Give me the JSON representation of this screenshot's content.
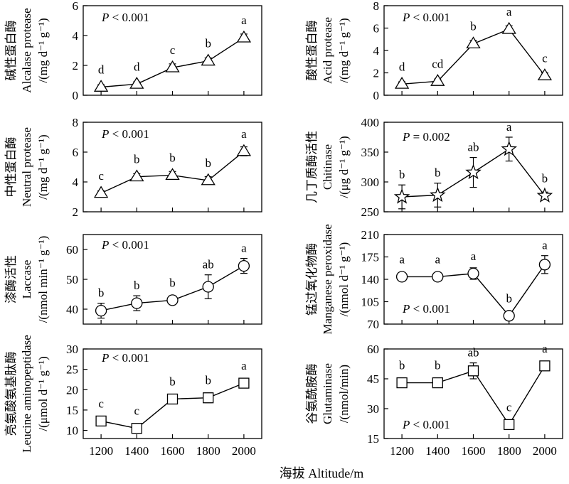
{
  "figure": {
    "xlabel": "海拔 Altitude/m"
  },
  "chart_data": [
    {
      "type": "line",
      "xlabel_cn": "碱性蛋白酶",
      "xlabel_en": "Alcalase protease",
      "ylabel_unit": "/(mg d⁻¹ g⁻¹)",
      "pvalue": "P < 0.001",
      "marker": "triangle",
      "x": [
        1200,
        1400,
        1600,
        1800,
        2000
      ],
      "y": [
        0.55,
        0.75,
        1.85,
        2.3,
        3.85
      ],
      "err": [
        0.15,
        0.15,
        0.25,
        0.2,
        0.25
      ],
      "letters": [
        "d",
        "d",
        "c",
        "b",
        "a"
      ],
      "ylim": [
        0,
        6
      ],
      "yticks": [
        0,
        2,
        4,
        6
      ]
    },
    {
      "type": "line",
      "xlabel_cn": "酸性蛋白酶",
      "xlabel_en": "Acid protease",
      "ylabel_unit": "/(mg d⁻¹ g⁻¹)",
      "pvalue": "P < 0.001",
      "marker": "triangle",
      "x": [
        1200,
        1400,
        1600,
        1800,
        2000
      ],
      "y": [
        1.0,
        1.25,
        4.6,
        5.9,
        1.75
      ],
      "err": [
        0.2,
        0.2,
        0.3,
        0.3,
        0.25
      ],
      "letters": [
        "d",
        "cd",
        "b",
        "a",
        "c"
      ],
      "ylim": [
        0,
        8
      ],
      "yticks": [
        0,
        2,
        4,
        6,
        8
      ]
    },
    {
      "type": "line",
      "xlabel_cn": "中性蛋白酶",
      "xlabel_en": "Neutral protease",
      "ylabel_unit": "/(mg d⁻¹ g⁻¹)",
      "pvalue": "P < 0.001",
      "marker": "triangle",
      "x": [
        1200,
        1400,
        1600,
        1800,
        2000
      ],
      "y": [
        3.25,
        4.35,
        4.45,
        4.1,
        6.05
      ],
      "err": [
        0.15,
        0.2,
        0.25,
        0.25,
        0.3
      ],
      "letters": [
        "c",
        "b",
        "b",
        "b",
        "a"
      ],
      "ylim": [
        2,
        8
      ],
      "yticks": [
        2,
        4,
        6,
        8
      ]
    },
    {
      "type": "line",
      "xlabel_cn": "几丁质酶活性",
      "xlabel_en": "Chitinase",
      "ylabel_unit": "/(μg d⁻¹ g⁻¹)",
      "pvalue": "P = 0.002",
      "marker": "star",
      "x": [
        1200,
        1400,
        1600,
        1800,
        2000
      ],
      "y": [
        275,
        278,
        316,
        355,
        277
      ],
      "err": [
        20,
        20,
        25,
        20,
        6
      ],
      "letters": [
        "b",
        "b",
        "ab",
        "a",
        "b"
      ],
      "ylim": [
        250,
        400
      ],
      "yticks": [
        250,
        300,
        350,
        400
      ]
    },
    {
      "type": "line",
      "xlabel_cn": "漆酶活性",
      "xlabel_en": "Laccase",
      "ylabel_unit": "/(nmol min⁻¹ g⁻¹)",
      "pvalue": "P < 0.001",
      "marker": "circle",
      "x": [
        1200,
        1400,
        1600,
        1800,
        2000
      ],
      "y": [
        39.5,
        42,
        43,
        47.5,
        54.5
      ],
      "err": [
        2.5,
        2.5,
        1.5,
        4,
        2.5
      ],
      "letters": [
        "b",
        "b",
        "b",
        "ab",
        "a"
      ],
      "ylim": [
        35,
        65
      ],
      "yticks": [
        40,
        50,
        60
      ]
    },
    {
      "type": "line",
      "xlabel_cn": "锰过氧化物酶",
      "xlabel_en": "Manganese peroxidase",
      "ylabel_unit": "/(nmol d⁻¹ g⁻¹)",
      "pvalue": "P < 0.001",
      "marker": "circle",
      "x": [
        1200,
        1400,
        1600,
        1800,
        2000
      ],
      "y": [
        144,
        144,
        149,
        83,
        163
      ],
      "err": [
        4,
        5,
        9,
        4,
        14
      ],
      "letters": [
        "a",
        "a",
        "a",
        "b",
        "a"
      ],
      "ylim": [
        70,
        210
      ],
      "yticks": [
        70,
        105,
        140,
        175,
        210
      ]
    },
    {
      "type": "line",
      "xlabel_cn": "亮氨酸氨基肽酶",
      "xlabel_en": "Leucine aminopeptidase",
      "ylabel_unit": "/(μmol d⁻¹ g⁻¹)",
      "pvalue": "P < 0.001",
      "marker": "square",
      "x": [
        1200,
        1400,
        1600,
        1800,
        2000
      ],
      "y": [
        12.3,
        10.5,
        17.7,
        18.0,
        21.6
      ],
      "err": [
        0.8,
        0.8,
        0.8,
        1.2,
        0.8
      ],
      "letters": [
        "c",
        "c",
        "b",
        "b",
        "a"
      ],
      "ylim": [
        8,
        30
      ],
      "yticks": [
        10,
        15,
        20,
        25,
        30
      ]
    },
    {
      "type": "line",
      "xlabel_cn": "谷氨酰胺酶",
      "xlabel_en": "Glutaminase",
      "ylabel_unit": "/(nmol/min)",
      "pvalue": "P < 0.001",
      "marker": "square",
      "x": [
        1200,
        1400,
        1600,
        1800,
        2000
      ],
      "y": [
        43,
        43,
        49,
        22,
        51.5
      ],
      "err": [
        2,
        2,
        4,
        1,
        2
      ],
      "letters": [
        "b",
        "b",
        "ab",
        "c",
        "a"
      ],
      "ylim": [
        15,
        60
      ],
      "yticks": [
        15,
        30,
        45,
        60
      ]
    }
  ],
  "xticks": [
    1200,
    1400,
    1600,
    1800,
    2000
  ]
}
